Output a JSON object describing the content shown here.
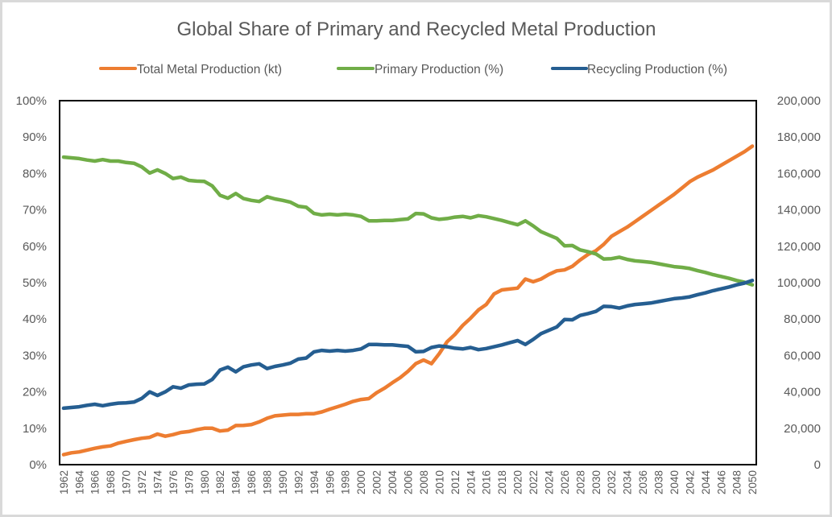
{
  "chart_data": {
    "type": "line",
    "title": "Global Share of Primary and Recycled Metal Production",
    "legend_position": "top",
    "grid": false,
    "x": [
      1962,
      1963,
      1964,
      1965,
      1966,
      1967,
      1968,
      1969,
      1970,
      1971,
      1972,
      1973,
      1974,
      1975,
      1976,
      1977,
      1978,
      1979,
      1980,
      1981,
      1982,
      1983,
      1984,
      1985,
      1986,
      1987,
      1988,
      1989,
      1990,
      1991,
      1992,
      1993,
      1994,
      1995,
      1996,
      1997,
      1998,
      1999,
      2000,
      2001,
      2002,
      2003,
      2004,
      2005,
      2006,
      2007,
      2008,
      2009,
      2010,
      2011,
      2012,
      2013,
      2014,
      2015,
      2016,
      2017,
      2018,
      2019,
      2020,
      2021,
      2022,
      2023,
      2024,
      2025,
      2026,
      2027,
      2028,
      2029,
      2030,
      2031,
      2032,
      2033,
      2034,
      2035,
      2036,
      2037,
      2038,
      2039,
      2040,
      2041,
      2042,
      2043,
      2044,
      2045,
      2046,
      2047,
      2048,
      2049,
      2050
    ],
    "x_tick_labels": [
      "1962",
      "1964",
      "1966",
      "1968",
      "1970",
      "1972",
      "1974",
      "1976",
      "1978",
      "1980",
      "1982",
      "1984",
      "1986",
      "1988",
      "1990",
      "1992",
      "1994",
      "1996",
      "1998",
      "2000",
      "2002",
      "2004",
      "2006",
      "2008",
      "2010",
      "2012",
      "2014",
      "2016",
      "2018",
      "2020",
      "2022",
      "2024",
      "2026",
      "2028",
      "2030",
      "2032",
      "2034",
      "2036",
      "2038",
      "2040",
      "2042",
      "2044",
      "2046",
      "2048",
      "2050"
    ],
    "y_left": {
      "label": "",
      "range": [
        0,
        100
      ],
      "ticks": [
        "0%",
        "10%",
        "20%",
        "30%",
        "40%",
        "50%",
        "60%",
        "70%",
        "80%",
        "90%",
        "100%"
      ]
    },
    "y_right": {
      "label": "",
      "range": [
        0,
        200000
      ],
      "ticks": [
        "0",
        "20,000",
        "40,000",
        "60,000",
        "80,000",
        "100,000",
        "120,000",
        "140,000",
        "160,000",
        "180,000",
        "200,000"
      ]
    },
    "series": [
      {
        "name": "Total Metal Production (kt)",
        "axis": "right",
        "color": "#ed7d31",
        "values": [
          5500,
          6500,
          7000,
          8000,
          9000,
          9800,
          10300,
          11800,
          12800,
          13700,
          14500,
          15000,
          16800,
          15600,
          16500,
          17700,
          18200,
          19200,
          20000,
          20000,
          18500,
          19000,
          21500,
          21600,
          22000,
          23500,
          25500,
          26800,
          27200,
          27600,
          27600,
          28000,
          28000,
          29000,
          30500,
          31800,
          33200,
          34800,
          35800,
          36300,
          39500,
          42000,
          45000,
          47800,
          51300,
          55500,
          57500,
          55500,
          61000,
          67500,
          71500,
          76500,
          80500,
          85000,
          88000,
          93800,
          96000,
          96500,
          97000,
          102000,
          100500,
          102000,
          104500,
          106500,
          107000,
          109000,
          112500,
          115500,
          117500,
          121000,
          125500,
          128000,
          130500,
          133500,
          136500,
          139500,
          142500,
          145500,
          148500,
          152000,
          155500,
          158000,
          160000,
          162000,
          164500,
          167000,
          169500,
          172000,
          175000
        ]
      },
      {
        "name": "Primary Production (%)",
        "axis": "left",
        "color": "#70ad47",
        "values": [
          84.5,
          84.3,
          84.1,
          83.7,
          83.4,
          83.8,
          83.4,
          83.4,
          83.0,
          82.8,
          81.8,
          80.1,
          81.0,
          80.0,
          78.6,
          79.0,
          78.1,
          77.9,
          77.8,
          76.6,
          74.0,
          73.2,
          74.5,
          73.1,
          72.6,
          72.3,
          73.6,
          73.0,
          72.6,
          72.1,
          71.0,
          70.7,
          69.0,
          68.6,
          68.8,
          68.6,
          68.8,
          68.6,
          68.2,
          67.0,
          67.0,
          67.1,
          67.1,
          67.3,
          67.5,
          69.0,
          68.9,
          67.8,
          67.4,
          67.6,
          68.0,
          68.2,
          67.8,
          68.4,
          68.1,
          67.6,
          67.1,
          66.5,
          65.9,
          67.0,
          65.6,
          64.0,
          63.1,
          62.2,
          60.1,
          60.2,
          59.0,
          58.5,
          57.9,
          56.5,
          56.6,
          57.0,
          56.4,
          56.0,
          55.8,
          55.6,
          55.2,
          54.8,
          54.4,
          54.2,
          53.9,
          53.3,
          52.8,
          52.2,
          51.7,
          51.2,
          50.6,
          50.1,
          49.4
        ]
      },
      {
        "name": "Recycling Production (%)",
        "axis": "left",
        "color": "#255e91",
        "values": [
          15.5,
          15.7,
          15.9,
          16.3,
          16.6,
          16.2,
          16.6,
          16.9,
          17.0,
          17.2,
          18.2,
          20.0,
          19.0,
          20.0,
          21.4,
          21.0,
          21.9,
          22.1,
          22.2,
          23.4,
          26.0,
          26.8,
          25.5,
          26.9,
          27.4,
          27.7,
          26.4,
          27.0,
          27.4,
          27.9,
          29.0,
          29.3,
          31.0,
          31.4,
          31.2,
          31.4,
          31.2,
          31.4,
          31.8,
          33.0,
          33.0,
          32.9,
          32.9,
          32.7,
          32.5,
          31.0,
          31.1,
          32.2,
          32.6,
          32.4,
          32.0,
          31.8,
          32.2,
          31.6,
          31.9,
          32.4,
          32.9,
          33.5,
          34.1,
          33.0,
          34.4,
          36.0,
          36.9,
          37.8,
          39.9,
          39.8,
          41.0,
          41.5,
          42.1,
          43.5,
          43.4,
          43.0,
          43.6,
          44.0,
          44.2,
          44.4,
          44.8,
          45.2,
          45.6,
          45.8,
          46.1,
          46.7,
          47.2,
          47.8,
          48.3,
          48.8,
          49.4,
          49.9,
          50.6
        ]
      }
    ]
  }
}
